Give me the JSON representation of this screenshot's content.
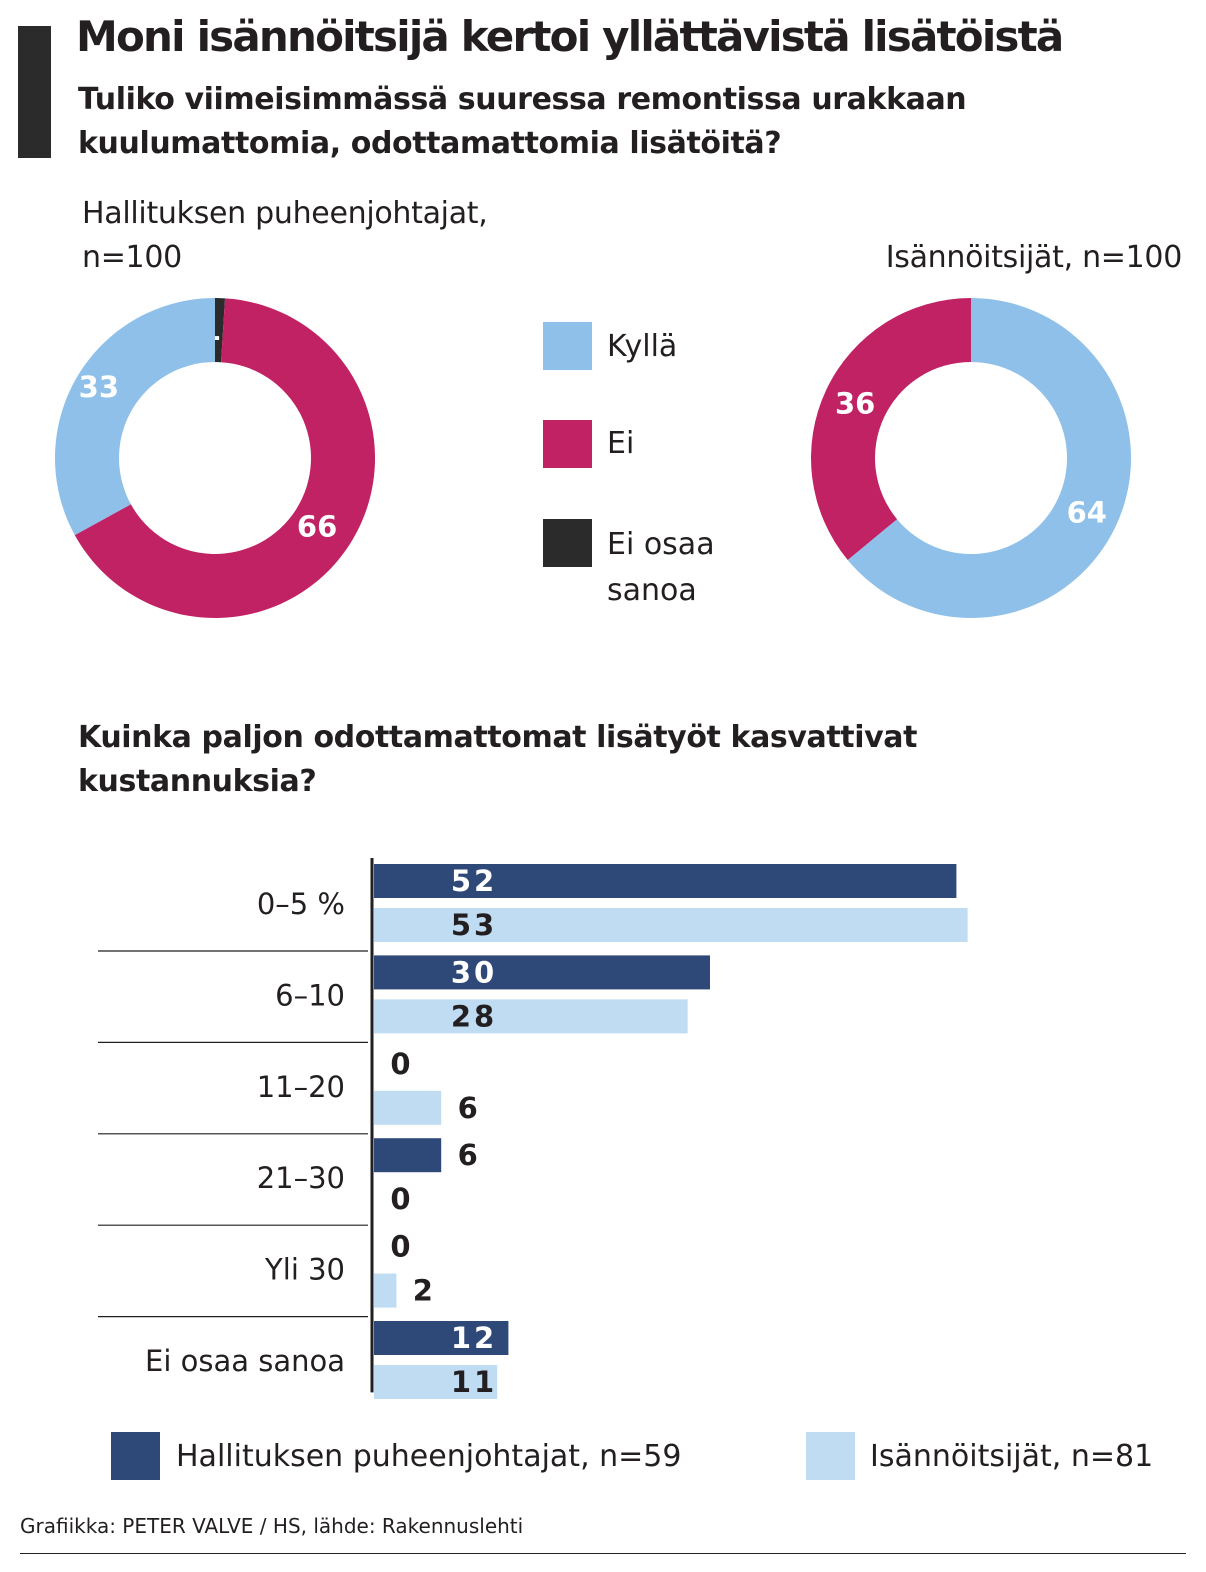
{
  "title": "Moni isännöitsijä kertoi yllättävistä lisätöistä",
  "subtitle": "Tuliko viimeisimmässä suuressa remontissa urakkaan kuulumattomia, odottamattomia lisätöitä?",
  "credit": "Grafiikka: PETER VALVE / HS, lähde: Rakennuslehti",
  "colors": {
    "kylla": "#8ec0e9",
    "ei": "#c02264",
    "ei_osaa": "#2b2b2b",
    "puheenjohtajat": "#2e4877",
    "isannoitsijat": "#bfdcf3",
    "text": "#231f20"
  },
  "donut_legend": [
    {
      "label": "Kyllä",
      "color": "#8ec0e9"
    },
    {
      "label": "Ei",
      "color": "#c02264"
    },
    {
      "label": "Ei osaa sanoa",
      "color": "#2b2b2b"
    }
  ],
  "bar_legend": [
    {
      "label": "Hallituksen puheenjohtajat, n=59",
      "color": "#2e4877"
    },
    {
      "label": "Isännöitsijät, n=81",
      "color": "#bfdcf3"
    }
  ],
  "chart_data": [
    {
      "type": "pie",
      "variant": "donut",
      "title": "Hallituksen puheenjohtajat, n=100",
      "categories": [
        "Kyllä",
        "Ei",
        "Ei osaa sanoa"
      ],
      "values": [
        33,
        66,
        1
      ],
      "colors": [
        "#8ec0e9",
        "#c02264",
        "#2b2b2b"
      ]
    },
    {
      "type": "pie",
      "variant": "donut",
      "title": "Isännöitsijät, n=100",
      "categories": [
        "Kyllä",
        "Ei"
      ],
      "values": [
        64,
        36
      ],
      "colors": [
        "#8ec0e9",
        "#c02264"
      ]
    },
    {
      "type": "bar",
      "orientation": "horizontal",
      "title": "Kuinka paljon odottamattomat lisätyöt kasvattivat kustannuksia?",
      "categories": [
        "0–5 %",
        "6–10",
        "11–20",
        "21–30",
        "Yli 30",
        "Ei osaa sanoa"
      ],
      "series": [
        {
          "name": "Hallituksen puheenjohtajat, n=59",
          "values": [
            52,
            30,
            0,
            6,
            0,
            12
          ],
          "color": "#2e4877"
        },
        {
          "name": "Isännöitsijät, n=81",
          "values": [
            53,
            28,
            6,
            0,
            2,
            11
          ],
          "color": "#bfdcf3"
        }
      ],
      "xlim": [
        0,
        53
      ]
    }
  ]
}
